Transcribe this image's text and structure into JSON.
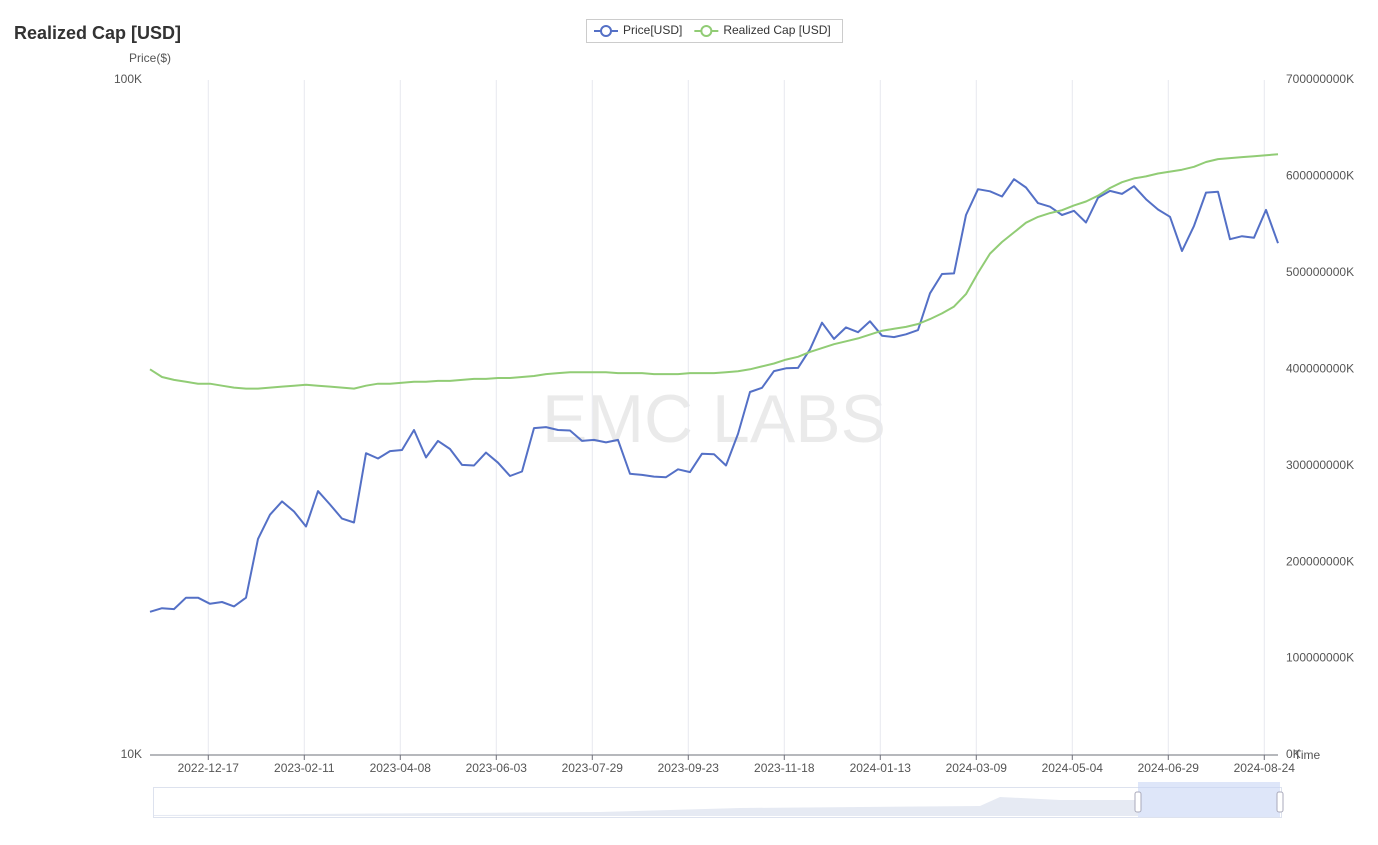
{
  "chart_data": {
    "type": "line",
    "title": "Realized Cap [USD]",
    "y_label": "Price($)",
    "x_label": "Time",
    "watermark": "EMC LABS",
    "yscale": "log",
    "ylim": [
      10000,
      100000
    ],
    "yticks": [
      {
        "value": 10000,
        "label": "10K"
      },
      {
        "value": 100000,
        "label": "100K"
      }
    ],
    "y2lim": [
      0,
      700000000000
    ],
    "y2ticks": [
      {
        "value": 0,
        "label": "0K"
      },
      {
        "value": 100000000000,
        "label": "100000000K"
      },
      {
        "value": 200000000000,
        "label": "200000000K"
      },
      {
        "value": 300000000000,
        "label": "300000000K"
      },
      {
        "value": 400000000000,
        "label": "400000000K"
      },
      {
        "value": 500000000000,
        "label": "500000000K"
      },
      {
        "value": 600000000000,
        "label": "600000000K"
      },
      {
        "value": 700000000000,
        "label": "700000000K"
      }
    ],
    "xlim": [
      "2022-11-13",
      "2024-09-01"
    ],
    "xticks": [
      "2022-12-17",
      "2023-02-11",
      "2023-04-08",
      "2023-06-03",
      "2023-07-29",
      "2023-09-23",
      "2023-11-18",
      "2024-01-13",
      "2024-03-09",
      "2024-05-04",
      "2024-06-29",
      "2024-08-24"
    ],
    "grid": "x",
    "legend": "top",
    "x": [
      "2022-11-13",
      "2022-11-20",
      "2022-11-27",
      "2022-12-04",
      "2022-12-11",
      "2022-12-18",
      "2022-12-25",
      "2023-01-01",
      "2023-01-08",
      "2023-01-15",
      "2023-01-22",
      "2023-01-29",
      "2023-02-05",
      "2023-02-12",
      "2023-02-19",
      "2023-02-26",
      "2023-03-05",
      "2023-03-12",
      "2023-03-19",
      "2023-03-26",
      "2023-04-02",
      "2023-04-09",
      "2023-04-16",
      "2023-04-23",
      "2023-04-30",
      "2023-05-07",
      "2023-05-14",
      "2023-05-21",
      "2023-05-28",
      "2023-06-04",
      "2023-06-11",
      "2023-06-18",
      "2023-06-25",
      "2023-07-02",
      "2023-07-09",
      "2023-07-16",
      "2023-07-23",
      "2023-07-30",
      "2023-08-06",
      "2023-08-13",
      "2023-08-20",
      "2023-08-27",
      "2023-09-03",
      "2023-09-10",
      "2023-09-17",
      "2023-09-24",
      "2023-10-01",
      "2023-10-08",
      "2023-10-15",
      "2023-10-22",
      "2023-10-29",
      "2023-11-05",
      "2023-11-12",
      "2023-11-19",
      "2023-11-26",
      "2023-12-03",
      "2023-12-10",
      "2023-12-17",
      "2023-12-24",
      "2023-12-31",
      "2024-01-07",
      "2024-01-14",
      "2024-01-21",
      "2024-01-28",
      "2024-02-04",
      "2024-02-11",
      "2024-02-18",
      "2024-02-25",
      "2024-03-03",
      "2024-03-10",
      "2024-03-17",
      "2024-03-24",
      "2024-03-31",
      "2024-04-07",
      "2024-04-14",
      "2024-04-21",
      "2024-04-28",
      "2024-05-05",
      "2024-05-12",
      "2024-05-19",
      "2024-05-26",
      "2024-06-02",
      "2024-06-09",
      "2024-06-16",
      "2024-06-23",
      "2024-06-30",
      "2024-07-07",
      "2024-07-14",
      "2024-07-21",
      "2024-07-28",
      "2024-08-04",
      "2024-08-11",
      "2024-08-18",
      "2024-08-25",
      "2024-09-01"
    ],
    "series": [
      {
        "name": "Price[USD]",
        "color": "#5470c6",
        "axis": "y",
        "values": [
          16300,
          16500,
          16450,
          17100,
          17100,
          16750,
          16850,
          16600,
          17100,
          20900,
          22700,
          23750,
          22950,
          21800,
          24600,
          23500,
          22400,
          22100,
          28000,
          27500,
          28200,
          28300,
          30300,
          27600,
          29200,
          28400,
          26900,
          26850,
          28050,
          27100,
          25900,
          26300,
          30500,
          30600,
          30300,
          30250,
          29200,
          29300,
          29050,
          29300,
          26100,
          26000,
          25850,
          25800,
          26500,
          26250,
          27950,
          27900,
          26850,
          29900,
          34500,
          35000,
          37050,
          37400,
          37450,
          39900,
          43700,
          41350,
          43000,
          42300,
          43900,
          41800,
          41600,
          42000,
          42600,
          48300,
          51600,
          51700,
          63100,
          68900,
          68400,
          67200,
          71300,
          69300,
          65700,
          64900,
          63100,
          64000,
          61500,
          66900,
          68500,
          67800,
          69600,
          66600,
          64300,
          62700,
          55800,
          60800,
          68100,
          68300,
          58100,
          58700,
          58400,
          64200,
          57300
        ]
      },
      {
        "name": "Realized Cap [USD]",
        "color": "#91cc75",
        "axis": "y2",
        "values": [
          400000000000,
          392000000000,
          389000000000,
          387000000000,
          385000000000,
          385000000000,
          383000000000,
          381000000000,
          380000000000,
          380000000000,
          381000000000,
          382000000000,
          383000000000,
          384000000000,
          383000000000,
          382000000000,
          381000000000,
          380000000000,
          383000000000,
          385000000000,
          385000000000,
          386000000000,
          387000000000,
          387000000000,
          388000000000,
          388000000000,
          389000000000,
          390000000000,
          390000000000,
          391000000000,
          391000000000,
          392000000000,
          393000000000,
          395000000000,
          396000000000,
          397000000000,
          397000000000,
          397000000000,
          397000000000,
          396000000000,
          396000000000,
          396000000000,
          395000000000,
          395000000000,
          395000000000,
          396000000000,
          396000000000,
          396000000000,
          397000000000,
          398000000000,
          400000000000,
          403000000000,
          406000000000,
          410000000000,
          413000000000,
          418000000000,
          422000000000,
          426000000000,
          429000000000,
          432000000000,
          436000000000,
          440000000000,
          442000000000,
          444000000000,
          447000000000,
          452000000000,
          458000000000,
          465000000000,
          478000000000,
          500000000000,
          520000000000,
          532000000000,
          542000000000,
          552000000000,
          558000000000,
          562000000000,
          565000000000,
          570000000000,
          574000000000,
          580000000000,
          588000000000,
          594000000000,
          598000000000,
          600000000000,
          603000000000,
          605000000000,
          607000000000,
          610000000000,
          615000000000,
          618000000000,
          619000000000,
          620000000000,
          621000000000,
          622000000000,
          623000000000
        ]
      }
    ]
  }
}
